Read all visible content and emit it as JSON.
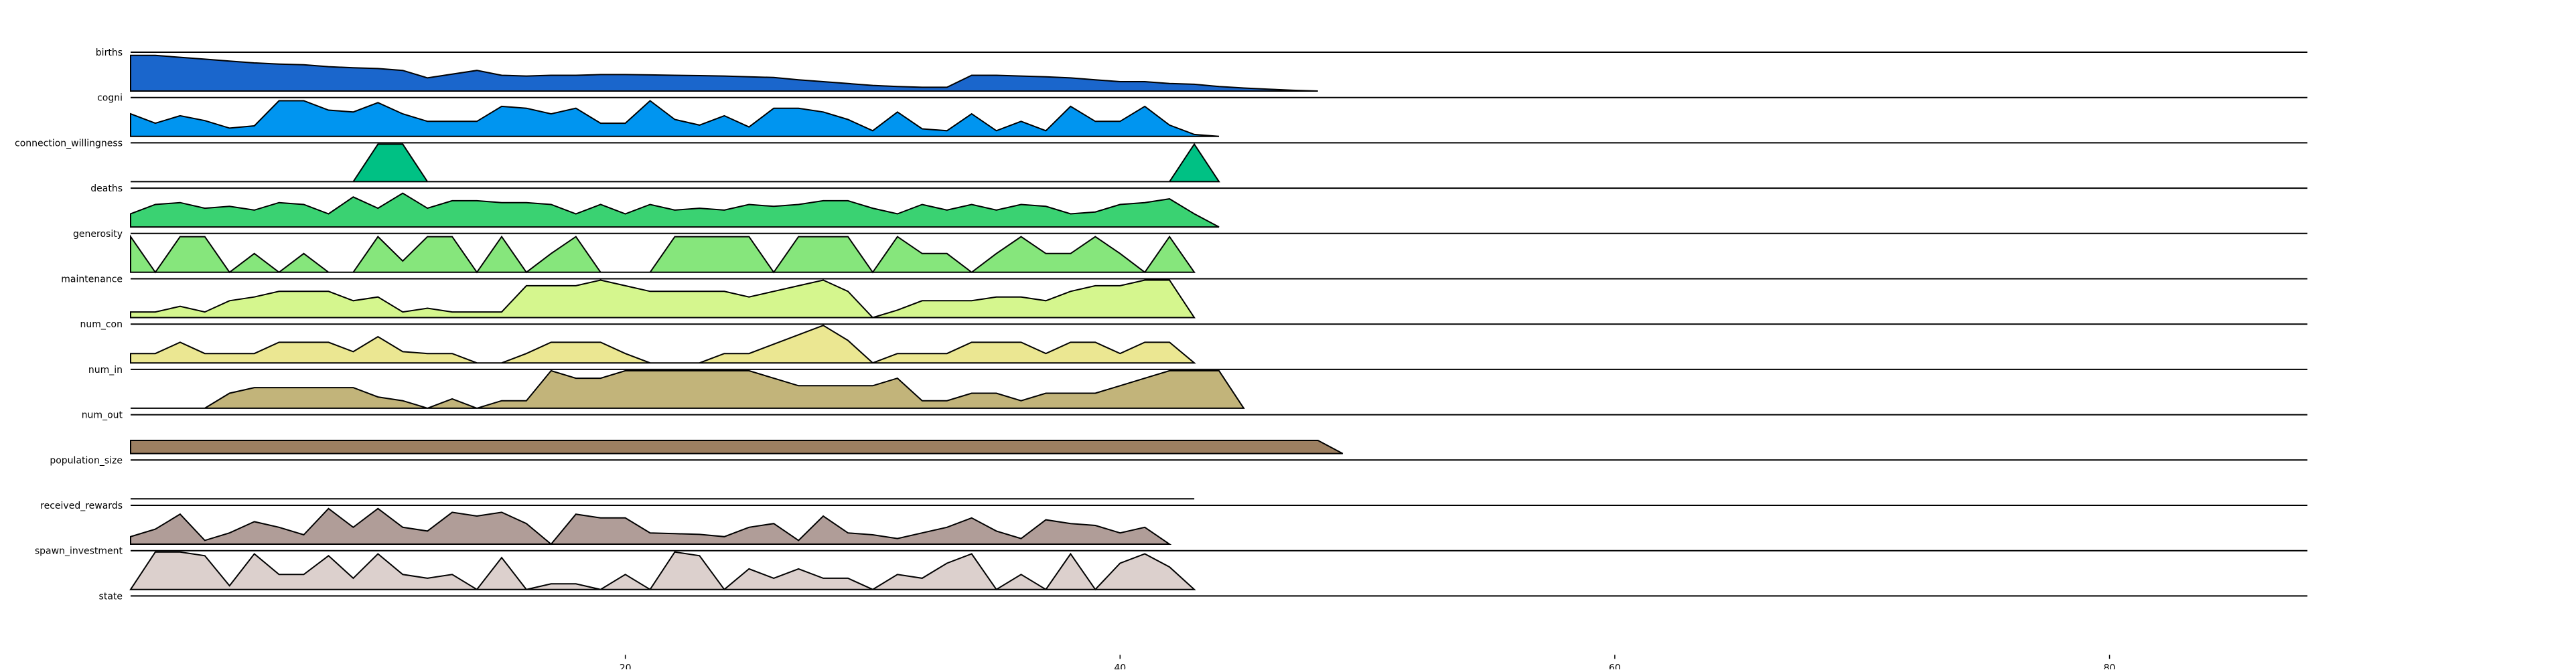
{
  "chart_data": {
    "type": "area",
    "title": "",
    "xlabel": "",
    "ylabel": "",
    "xlim": [
      0,
      88
    ],
    "x_ticks": [
      20,
      40,
      60,
      80
    ],
    "x_tick_labels": [
      "20",
      "40",
      "60",
      "80"
    ],
    "grid": false,
    "legend": "none",
    "series": [
      {
        "name": "births",
        "color": "#1a66cc",
        "x_start": 0,
        "values": [
          0.95,
          0.95,
          0.9,
          0.85,
          0.8,
          0.75,
          0.72,
          0.7,
          0.65,
          0.62,
          0.6,
          0.55,
          0.35,
          0.45,
          0.55,
          0.42,
          0.4,
          0.42,
          0.42,
          0.44,
          0.44,
          0.43,
          0.42,
          0.41,
          0.4,
          0.38,
          0.36,
          0.3,
          0.25,
          0.2,
          0.15,
          0.12,
          0.1,
          0.1,
          0.42,
          0.42,
          0.4,
          0.38,
          0.35,
          0.3,
          0.25,
          0.25,
          0.2,
          0.18,
          0.12,
          0.08,
          0.05,
          0.02,
          0.0
        ]
      },
      {
        "name": "cogni",
        "color": "#0095f0",
        "x_start": 0,
        "values": [
          0.6,
          0.35,
          0.55,
          0.42,
          0.22,
          0.28,
          0.95,
          0.95,
          0.7,
          0.65,
          0.9,
          0.6,
          0.4,
          0.4,
          0.4,
          0.8,
          0.75,
          0.6,
          0.75,
          0.35,
          0.35,
          0.95,
          0.45,
          0.3,
          0.55,
          0.25,
          0.75,
          0.75,
          0.65,
          0.45,
          0.15,
          0.65,
          0.2,
          0.15,
          0.6,
          0.15,
          0.4,
          0.15,
          0.8,
          0.4,
          0.4,
          0.8,
          0.3,
          0.05,
          0.0
        ]
      },
      {
        "name": "connection_willingness",
        "color": "#00c184",
        "x_start": 0,
        "values": [
          0.0,
          0.0,
          0.0,
          0.0,
          0.0,
          0.0,
          0.0,
          0.0,
          0.0,
          0.0,
          1.0,
          1.0,
          0.0,
          0.0,
          0.0,
          0.0,
          0.0,
          0.0,
          0.0,
          0.0,
          0.0,
          0.0,
          0.0,
          0.0,
          0.0,
          0.0,
          0.0,
          0.0,
          0.0,
          0.0,
          0.0,
          0.0,
          0.0,
          0.0,
          0.0,
          0.0,
          0.0,
          0.0,
          0.0,
          0.0,
          0.0,
          0.0,
          0.0,
          1.0,
          0.0
        ]
      },
      {
        "name": "deaths",
        "color": "#3ad272",
        "x_start": 0,
        "values": [
          0.35,
          0.6,
          0.65,
          0.5,
          0.55,
          0.45,
          0.65,
          0.6,
          0.35,
          0.8,
          0.5,
          0.9,
          0.5,
          0.7,
          0.7,
          0.65,
          0.65,
          0.6,
          0.35,
          0.6,
          0.35,
          0.6,
          0.45,
          0.5,
          0.45,
          0.6,
          0.55,
          0.6,
          0.7,
          0.7,
          0.5,
          0.35,
          0.6,
          0.45,
          0.6,
          0.45,
          0.6,
          0.55,
          0.35,
          0.4,
          0.6,
          0.65,
          0.75,
          0.35,
          0.0
        ]
      },
      {
        "name": "generosity",
        "color": "#86e67c",
        "x_start": 0,
        "values": [
          0.95,
          0.0,
          0.95,
          0.95,
          0.0,
          0.5,
          0.0,
          0.5,
          0.0,
          0.0,
          0.95,
          0.3,
          0.95,
          0.95,
          0.0,
          0.95,
          0.0,
          0.5,
          0.95,
          0.0,
          0.0,
          0.0,
          0.95,
          0.95,
          0.95,
          0.95,
          0.0,
          0.95,
          0.95,
          0.95,
          0.0,
          0.95,
          0.5,
          0.5,
          0.0,
          0.5,
          0.95,
          0.5,
          0.5,
          0.95,
          0.5,
          0.0,
          0.95,
          0.0
        ]
      },
      {
        "name": "maintenance",
        "color": "#d5f68e",
        "x_start": 0,
        "values": [
          0.15,
          0.15,
          0.3,
          0.15,
          0.45,
          0.55,
          0.7,
          0.7,
          0.7,
          0.45,
          0.55,
          0.15,
          0.25,
          0.15,
          0.15,
          0.15,
          0.85,
          0.85,
          0.85,
          1.0,
          0.85,
          0.7,
          0.7,
          0.7,
          0.7,
          0.55,
          0.7,
          0.85,
          1.0,
          0.7,
          0.0,
          0.2,
          0.45,
          0.45,
          0.45,
          0.55,
          0.55,
          0.45,
          0.7,
          0.85,
          0.85,
          1.0,
          1.0,
          0.0
        ]
      },
      {
        "name": "num_con",
        "color": "#ebe792",
        "x_start": 0,
        "values": [
          0.25,
          0.25,
          0.55,
          0.25,
          0.25,
          0.25,
          0.55,
          0.55,
          0.55,
          0.3,
          0.7,
          0.3,
          0.25,
          0.25,
          0.0,
          0.0,
          0.25,
          0.55,
          0.55,
          0.55,
          0.25,
          0.0,
          0.0,
          0.0,
          0.25,
          0.25,
          0.5,
          0.75,
          1.0,
          0.6,
          0.0,
          0.25,
          0.25,
          0.25,
          0.55,
          0.55,
          0.55,
          0.25,
          0.55,
          0.55,
          0.25,
          0.55,
          0.55,
          0.0
        ]
      },
      {
        "name": "num_in",
        "color": "#c2b47a",
        "x_start": 0,
        "values": [
          0.0,
          0.0,
          0.0,
          0.0,
          0.4,
          0.55,
          0.55,
          0.55,
          0.55,
          0.55,
          0.3,
          0.2,
          0.0,
          0.25,
          0.0,
          0.2,
          0.2,
          1.0,
          0.8,
          0.8,
          1.0,
          1.0,
          1.0,
          1.0,
          1.0,
          1.0,
          0.8,
          0.6,
          0.6,
          0.6,
          0.6,
          0.8,
          0.2,
          0.2,
          0.4,
          0.4,
          0.2,
          0.4,
          0.4,
          0.4,
          0.6,
          0.8,
          1.0,
          1.0,
          1.0,
          0.0
        ]
      },
      {
        "name": "num_out",
        "color": "#9c7f61",
        "x_start": 0,
        "values": [
          0.35,
          0.35,
          0.35,
          0.35,
          0.35,
          0.35,
          0.35,
          0.35,
          0.35,
          0.35,
          0.35,
          0.35,
          0.35,
          0.35,
          0.35,
          0.35,
          0.35,
          0.35,
          0.35,
          0.35,
          0.35,
          0.35,
          0.35,
          0.35,
          0.35,
          0.35,
          0.35,
          0.35,
          0.35,
          0.35,
          0.35,
          0.35,
          0.35,
          0.35,
          0.35,
          0.35,
          0.35,
          0.35,
          0.35,
          0.35,
          0.35,
          0.35,
          0.35,
          0.35,
          0.35,
          0.35,
          0.35,
          0.35,
          0.35,
          0.0
        ]
      },
      {
        "name": "population_size",
        "color": "#b09d98",
        "x_start": 0,
        "values": [
          0.0,
          0.0,
          0.0,
          0.0,
          0.0,
          0.0,
          0.0,
          0.0,
          0.0,
          0.0,
          0.0,
          0.0,
          0.0,
          0.0,
          0.0,
          0.0,
          0.0,
          0.0,
          0.0,
          0.0,
          0.0,
          0.0,
          0.0,
          0.0,
          0.0,
          0.0,
          0.0,
          0.0,
          0.0,
          0.0,
          0.0,
          0.0,
          0.0,
          0.0,
          0.0,
          0.0,
          0.0,
          0.0,
          0.0,
          0.0,
          0.0,
          0.0,
          0.0,
          0.0
        ]
      },
      {
        "name": "received_rewards",
        "color": "#b09d98",
        "x_start": 0,
        "values": [
          0.2,
          0.4,
          0.8,
          0.1,
          0.3,
          0.6,
          0.45,
          0.25,
          0.95,
          0.45,
          0.95,
          0.45,
          0.35,
          0.85,
          0.75,
          0.85,
          0.55,
          0.0,
          0.8,
          0.7,
          0.7,
          0.3,
          0.28,
          0.26,
          0.2,
          0.45,
          0.55,
          0.1,
          0.75,
          0.3,
          0.25,
          0.15,
          0.3,
          0.45,
          0.7,
          0.35,
          0.15,
          0.65,
          0.55,
          0.5,
          0.3,
          0.45,
          0.0
        ]
      },
      {
        "name": "spawn_investment",
        "color": "#dcd0cd",
        "x_start": 0,
        "values": [
          0.0,
          1.0,
          1.0,
          0.9,
          0.1,
          0.95,
          0.4,
          0.4,
          0.9,
          0.3,
          0.95,
          0.4,
          0.3,
          0.4,
          0.0,
          0.85,
          0.0,
          0.15,
          0.15,
          0.0,
          0.4,
          0.0,
          1.0,
          0.9,
          0.0,
          0.55,
          0.3,
          0.55,
          0.3,
          0.3,
          0.0,
          0.4,
          0.3,
          0.7,
          0.95,
          0.0,
          0.4,
          0.0,
          0.95,
          0.0,
          0.7,
          0.95,
          0.6,
          0.0
        ]
      },
      {
        "name": "state",
        "color": "#eae3e1",
        "x_start": 0,
        "values": []
      }
    ]
  }
}
